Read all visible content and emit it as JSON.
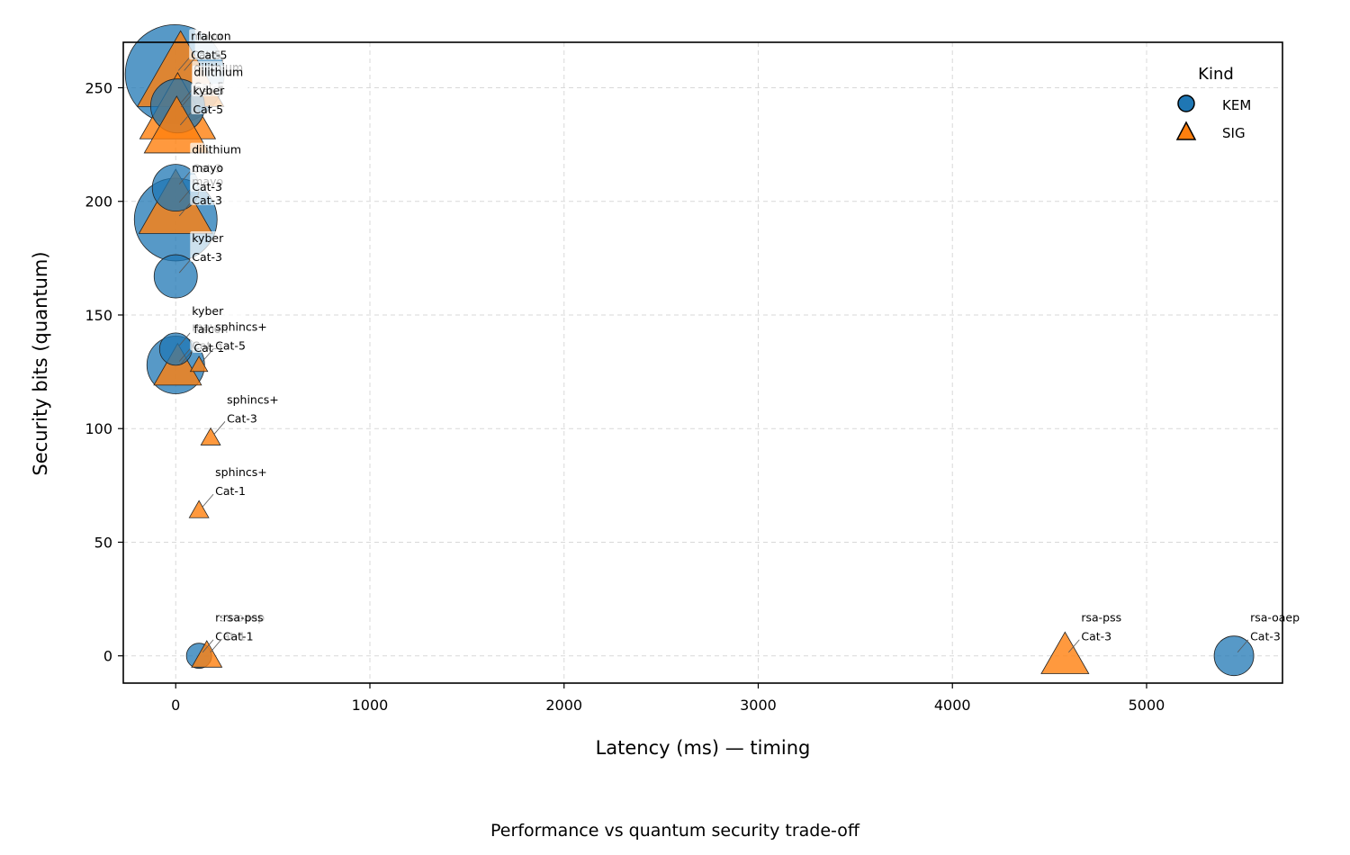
{
  "caption": "Performance vs quantum security trade-off",
  "chart_data": {
    "type": "scatter",
    "xlabel": "Latency (ms) — timing",
    "ylabel": "Security bits (quantum)",
    "xlim": [
      -270,
      5700
    ],
    "ylim": [
      -12,
      270
    ],
    "xticks": [
      0,
      1000,
      2000,
      3000,
      4000,
      5000
    ],
    "yticks": [
      0,
      50,
      100,
      150,
      200,
      250
    ],
    "grid": true,
    "legend": {
      "title": "Kind",
      "placement": "top-right",
      "entries": [
        {
          "label": "KEM",
          "marker": "circle",
          "color": "#1f77b4"
        },
        {
          "label": "SIG",
          "marker": "triangle",
          "color": "#ff7f0e"
        }
      ]
    },
    "colors": {
      "KEM": "#1f77b4",
      "SIG": "#ff7f0e"
    },
    "points": [
      {
        "alg": "mayo",
        "cat": "Cat-5",
        "kind": "KEM",
        "x": -5,
        "y": 256,
        "size": 55
      },
      {
        "alg": "dilithium",
        "cat": "Cat-5",
        "kind": "KEM",
        "x": 10,
        "y": 242,
        "size": 30
      },
      {
        "alg": "falcon",
        "cat": "Cat-5",
        "kind": "SIG",
        "x": 25,
        "y": 256,
        "size": 40
      },
      {
        "alg": "dilithium",
        "cat": "Cat-5",
        "kind": "SIG",
        "x": 10,
        "y": 240,
        "size": 35
      },
      {
        "alg": "kyber",
        "cat": "Cat-5",
        "kind": "SIG",
        "x": 5,
        "y": 232,
        "size": 30
      },
      {
        "alg": "dilithium",
        "cat": "Cat-3",
        "kind": "KEM",
        "x": 0,
        "y": 206,
        "size": 26
      },
      {
        "alg": "mayo",
        "cat": "Cat-3",
        "kind": "KEM",
        "x": 0,
        "y": 192,
        "size": 46
      },
      {
        "alg": "mayo",
        "cat": "Cat-3",
        "kind": "SIG",
        "x": 0,
        "y": 198,
        "size": 34
      },
      {
        "alg": "kyber",
        "cat": "Cat-3",
        "kind": "KEM",
        "x": 0,
        "y": 167,
        "size": 24
      },
      {
        "alg": "kyber",
        "cat": "Cat-1",
        "kind": "KEM",
        "x": 0,
        "y": 135,
        "size": 18
      },
      {
        "alg": "mayo",
        "cat": "Cat-1",
        "kind": "KEM",
        "x": 0,
        "y": 128,
        "size": 32
      },
      {
        "alg": "falcon",
        "cat": "Cat-1",
        "kind": "SIG",
        "x": 10,
        "y": 127,
        "size": 22
      },
      {
        "alg": "sphincs+",
        "cat": "Cat-5",
        "kind": "SIG",
        "x": 120,
        "y": 128,
        "size": 8
      },
      {
        "alg": "sphincs+",
        "cat": "Cat-3",
        "kind": "SIG",
        "x": 180,
        "y": 96,
        "size": 9
      },
      {
        "alg": "sphincs+",
        "cat": "Cat-1",
        "kind": "SIG",
        "x": 120,
        "y": 64,
        "size": 9
      },
      {
        "alg": "rsa-oaep",
        "cat": "Cat-1",
        "kind": "KEM",
        "x": 120,
        "y": 0,
        "size": 14
      },
      {
        "alg": "rsa-pss",
        "cat": "Cat-1",
        "kind": "SIG",
        "x": 160,
        "y": 0,
        "size": 14
      },
      {
        "alg": "rsa-pss",
        "cat": "Cat-3",
        "kind": "SIG",
        "x": 4580,
        "y": 0,
        "size": 22
      },
      {
        "alg": "rsa-oaep",
        "cat": "Cat-3",
        "kind": "KEM",
        "x": 5450,
        "y": 0,
        "size": 22
      }
    ]
  }
}
